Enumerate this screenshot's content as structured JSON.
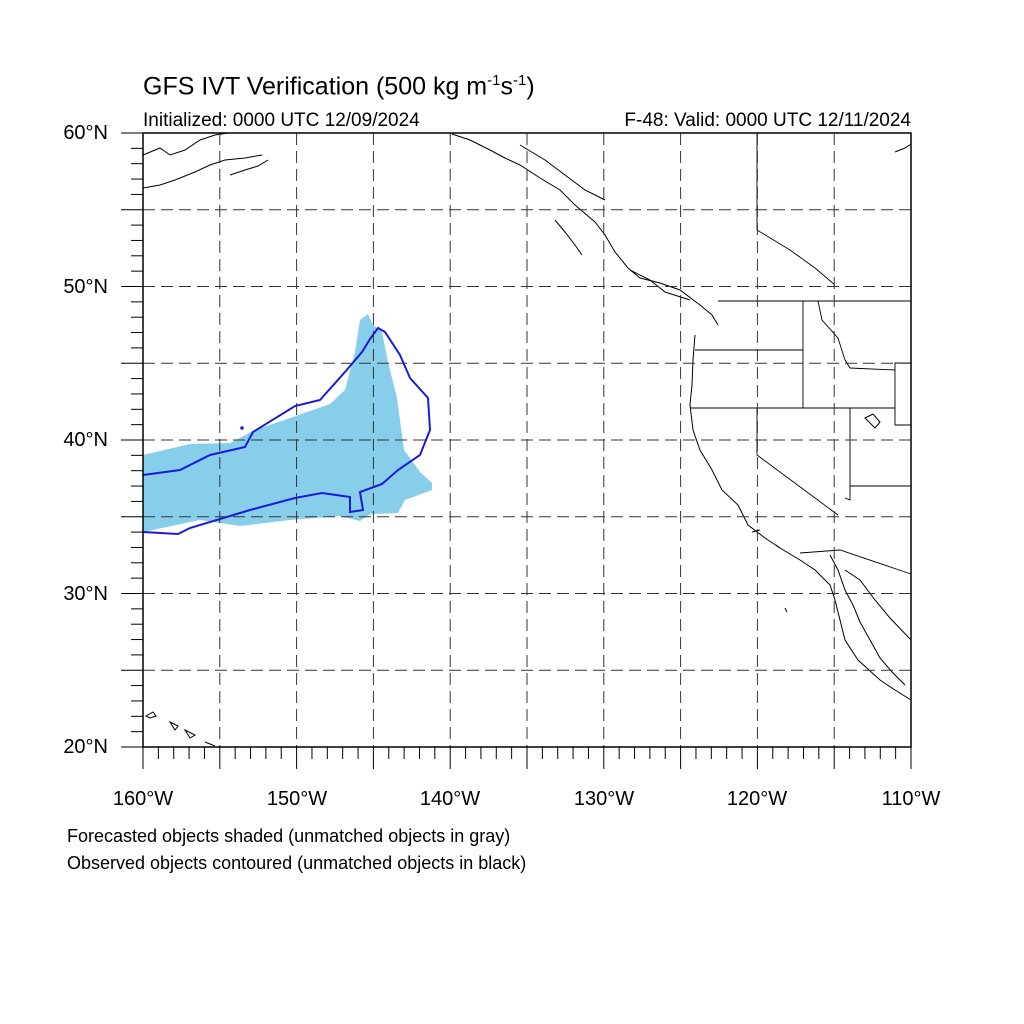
{
  "title": {
    "main": "GFS IVT Verification (500 kg m",
    "sup1": "-1",
    "mid": "s",
    "sup2": "-1",
    "end": ")"
  },
  "initialized": "Initialized: 0000 UTC 12/09/2024",
  "valid": "F-48: Valid: 0000 UTC 12/11/2024",
  "map": {
    "lon_range": [
      -160,
      -110
    ],
    "lat_range": [
      20,
      60
    ],
    "grid_step_deg": 5,
    "lat_labels": [
      "60°N",
      "50°N",
      "40°N",
      "30°N",
      "20°N"
    ],
    "lon_labels": [
      "160°W",
      "150°W",
      "140°W",
      "130°W",
      "120°W",
      "110°W"
    ]
  },
  "colors": {
    "forecast_fill": "#87ceeb",
    "observed_contour": "#1a1adc",
    "coast": "#000000",
    "grid": "#000000"
  },
  "legend": {
    "line1": "Forecasted objects shaded (unmatched objects in gray)",
    "line2": "Observed objects contoured (unmatched objects in black)"
  }
}
